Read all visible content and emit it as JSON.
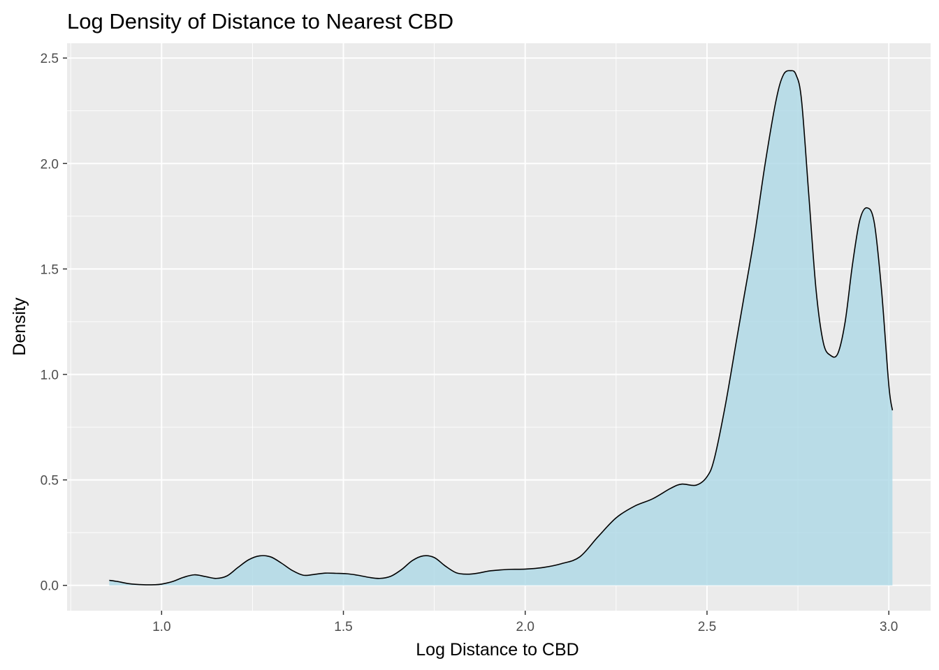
{
  "chart_data": {
    "type": "area",
    "title": "Log Density of Distance to Nearest CBD",
    "xlabel": "Log Distance to CBD",
    "ylabel": "Density",
    "xlim": [
      0.74,
      3.115
    ],
    "ylim": [
      -0.12,
      2.57
    ],
    "x_ticks": [
      1.0,
      1.5,
      2.0,
      2.5,
      3.0
    ],
    "x_tick_labels": [
      "1.0",
      "1.5",
      "2.0",
      "2.5",
      "3.0"
    ],
    "y_ticks": [
      0.0,
      0.5,
      1.0,
      1.5,
      2.0,
      2.5
    ],
    "y_tick_labels": [
      "0.0",
      "0.5",
      "1.0",
      "1.5",
      "2.0",
      "2.5"
    ],
    "x_minor_ticks": [
      0.75,
      1.25,
      1.75,
      2.25,
      2.75
    ],
    "y_minor_ticks": [
      0.25,
      0.75,
      1.25,
      1.75,
      2.25
    ],
    "grid": true,
    "colors": {
      "panel": "#EBEBEB",
      "grid": "#FFFFFF",
      "fill": "#ADD8E6",
      "line": "#000000"
    },
    "x": [
      0.856,
      0.88,
      0.91,
      0.95,
      0.98,
      1.0,
      1.03,
      1.06,
      1.09,
      1.12,
      1.15,
      1.18,
      1.21,
      1.24,
      1.27,
      1.3,
      1.33,
      1.36,
      1.39,
      1.42,
      1.45,
      1.48,
      1.51,
      1.54,
      1.57,
      1.6,
      1.63,
      1.66,
      1.69,
      1.72,
      1.75,
      1.78,
      1.81,
      1.84,
      1.87,
      1.9,
      1.93,
      1.96,
      2.0,
      2.05,
      2.1,
      2.15,
      2.2,
      2.25,
      2.3,
      2.35,
      2.4,
      2.43,
      2.47,
      2.5,
      2.52,
      2.55,
      2.58,
      2.6,
      2.63,
      2.66,
      2.69,
      2.71,
      2.73,
      2.745,
      2.76,
      2.78,
      2.8,
      2.82,
      2.84,
      2.86,
      2.88,
      2.9,
      2.92,
      2.94,
      2.96,
      2.98,
      3.0,
      3.01
    ],
    "values": [
      0.024,
      0.018,
      0.008,
      0.003,
      0.003,
      0.006,
      0.018,
      0.038,
      0.05,
      0.042,
      0.033,
      0.045,
      0.085,
      0.122,
      0.14,
      0.135,
      0.105,
      0.07,
      0.048,
      0.052,
      0.058,
      0.057,
      0.055,
      0.048,
      0.038,
      0.033,
      0.043,
      0.075,
      0.118,
      0.14,
      0.132,
      0.092,
      0.06,
      0.053,
      0.058,
      0.068,
      0.073,
      0.076,
      0.077,
      0.085,
      0.103,
      0.135,
      0.23,
      0.32,
      0.375,
      0.41,
      0.46,
      0.48,
      0.475,
      0.515,
      0.6,
      0.85,
      1.15,
      1.35,
      1.65,
      2.0,
      2.3,
      2.42,
      2.44,
      2.42,
      2.3,
      1.85,
      1.4,
      1.15,
      1.09,
      1.1,
      1.25,
      1.52,
      1.73,
      1.79,
      1.72,
      1.4,
      0.95,
      0.83
    ]
  }
}
